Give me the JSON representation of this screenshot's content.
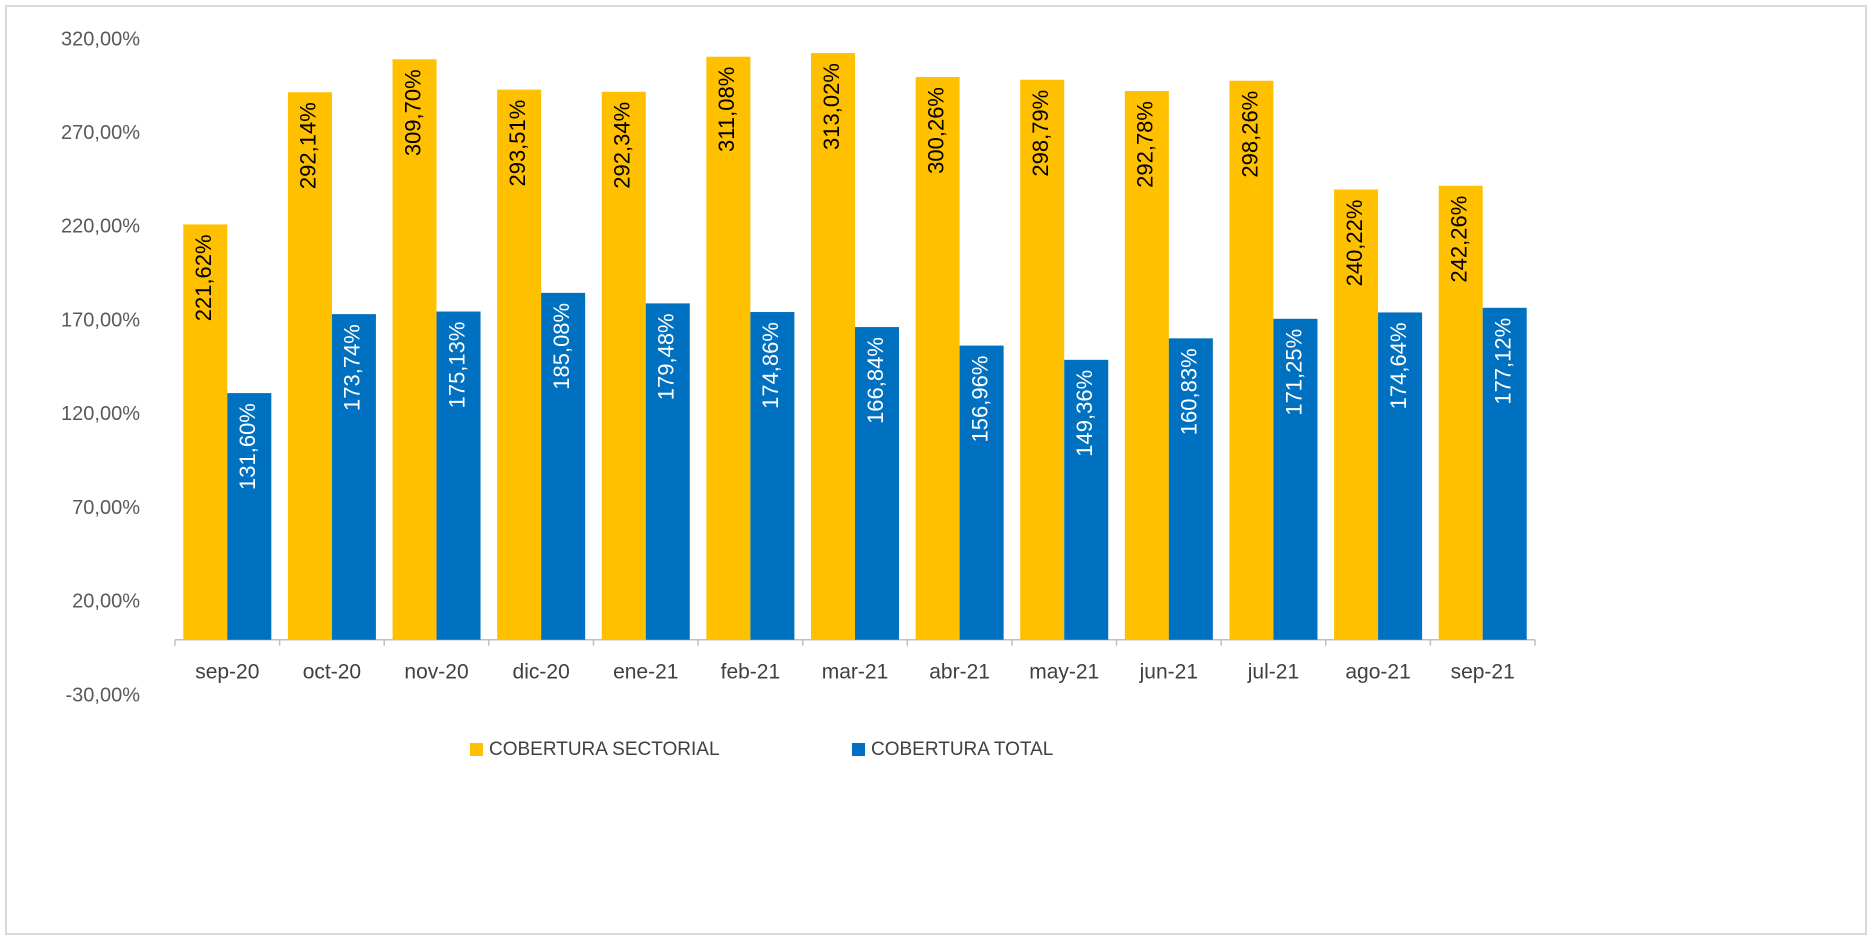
{
  "chart_data": {
    "type": "bar",
    "categories": [
      "sep-20",
      "oct-20",
      "nov-20",
      "dic-20",
      "ene-21",
      "feb-21",
      "mar-21",
      "abr-21",
      "may-21",
      "jun-21",
      "jul-21",
      "ago-21",
      "sep-21"
    ],
    "series": [
      {
        "name": "COBERTURA SECTORIAL",
        "color": "#ffc000",
        "values": [
          221.62,
          292.14,
          309.7,
          293.51,
          292.34,
          311.08,
          313.02,
          300.26,
          298.79,
          292.78,
          298.26,
          240.22,
          242.26
        ],
        "value_labels": [
          "221,62%",
          "292,14%",
          "309,70%",
          "293,51%",
          "292,34%",
          "311,08%",
          "313,02%",
          "300,26%",
          "298,79%",
          "292,78%",
          "298,26%",
          "240,22%",
          "242,26%"
        ]
      },
      {
        "name": "COBERTURA TOTAL",
        "color": "#0070c0",
        "values": [
          131.6,
          173.74,
          175.13,
          185.08,
          179.48,
          174.86,
          166.84,
          156.96,
          149.36,
          160.83,
          171.25,
          174.64,
          177.12
        ],
        "value_labels": [
          "131,60%",
          "173,74%",
          "175,13%",
          "185,08%",
          "179,48%",
          "174,86%",
          "166,84%",
          "156,96%",
          "149,36%",
          "160,83%",
          "171,25%",
          "174,64%",
          "177,12%"
        ]
      }
    ],
    "ylim": [
      -30,
      320
    ],
    "yticks": [
      {
        "value": -30,
        "label": "-30,00%"
      },
      {
        "value": 20,
        "label": "20,00%"
      },
      {
        "value": 70,
        "label": "70,00%"
      },
      {
        "value": 120,
        "label": "120,00%"
      },
      {
        "value": 170,
        "label": "170,00%"
      },
      {
        "value": 220,
        "label": "220,00%"
      },
      {
        "value": 270,
        "label": "270,00%"
      },
      {
        "value": 320,
        "label": "320,00%"
      }
    ],
    "grid": false,
    "legend": "bottom"
  }
}
